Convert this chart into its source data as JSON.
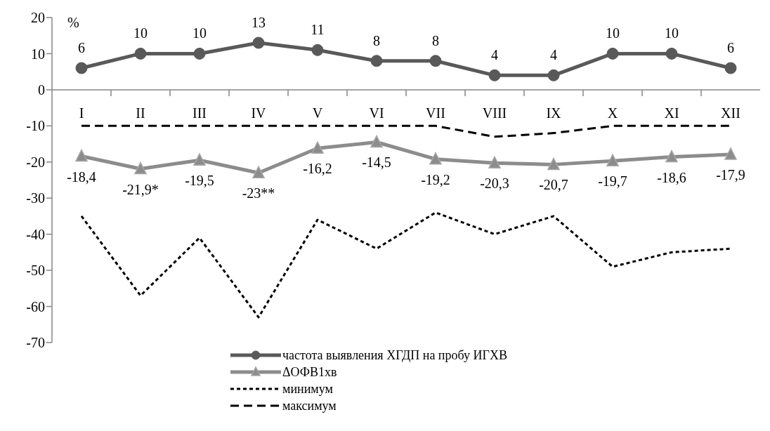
{
  "chart_data": {
    "type": "line",
    "categories": [
      "I",
      "II",
      "III",
      "IV",
      "V",
      "VI",
      "VII",
      "VIII",
      "IX",
      "X",
      "XI",
      "XII"
    ],
    "series": [
      {
        "name": "частота выявления ХГДП на пробу ИГХВ",
        "color": "#595959",
        "marker": "circle",
        "line_style": "solid",
        "values": [
          6,
          10,
          10,
          13,
          11,
          8,
          8,
          4,
          4,
          10,
          10,
          6
        ],
        "value_labels": [
          "6",
          "10",
          "10",
          "13",
          "11",
          "8",
          "8",
          "4",
          "4",
          "10",
          "10",
          "6"
        ]
      },
      {
        "name": "ΔОФВ1хв",
        "color": "#8c8c8c",
        "marker": "triangle",
        "line_style": "solid",
        "values": [
          -18.4,
          -21.9,
          -19.5,
          -23,
          -16.2,
          -14.5,
          -19.2,
          -20.3,
          -20.7,
          -19.7,
          -18.6,
          -17.9
        ],
        "value_labels": [
          "-18,4",
          "-21,9*",
          "-19,5",
          "-23**",
          "-16,2",
          "-14,5",
          "-19,2",
          "-20,3",
          "-20,7",
          "-19,7",
          "-18,6",
          "-17,9"
        ]
      },
      {
        "name": "минимум",
        "color": "#000000",
        "marker": "none",
        "line_style": "dotted",
        "values": [
          -35,
          -57,
          -41,
          -63,
          -36,
          -44,
          -34,
          -40,
          -35,
          -49,
          -45,
          -44
        ]
      },
      {
        "name": "максимум",
        "color": "#000000",
        "marker": "none",
        "line_style": "dashed",
        "values": [
          -10,
          -10,
          -10,
          -10,
          -10,
          -10,
          -10,
          -13,
          -12,
          -10,
          -10,
          -10
        ]
      }
    ],
    "annotations": [
      "%"
    ],
    "ylim": [
      -70,
      20
    ],
    "yticks": [
      -70,
      -60,
      -50,
      -40,
      -30,
      -20,
      -10,
      0,
      10,
      20
    ],
    "grid": false,
    "legend": "bottom"
  }
}
